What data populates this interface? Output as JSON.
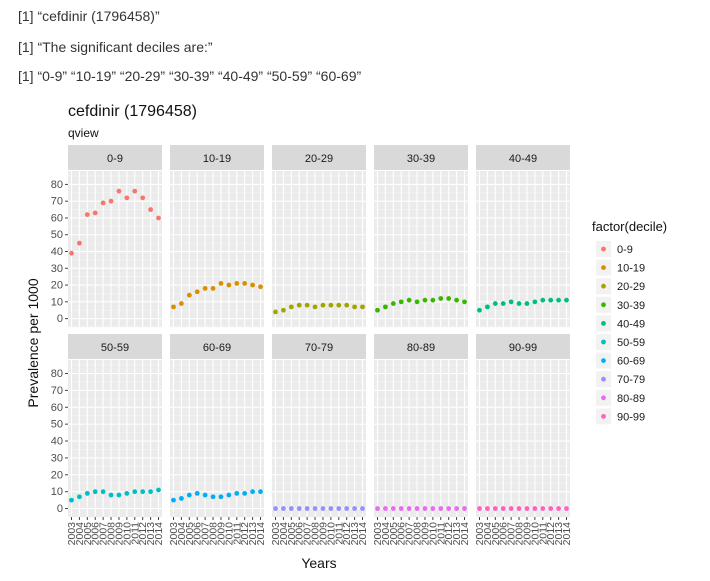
{
  "console": {
    "line1": "[1] “cefdinir (1796458)”",
    "line2": "[1] “The significant deciles are:”",
    "line3": "[1] “0-9” “10-19” “20-29” “30-39” “40-49” “50-59” “60-69”"
  },
  "chart_data": {
    "type": "scatter",
    "title": "cefdinir (1796458)",
    "subtitle": "qview",
    "xlabel": "Years",
    "ylabel": "Prevalence per 1000",
    "x": [
      "2003",
      "2004",
      "2005",
      "2006",
      "2007",
      "2008",
      "2009",
      "2010",
      "2011",
      "2012",
      "2013",
      "2014"
    ],
    "y_ticks": [
      0,
      10,
      20,
      30,
      40,
      50,
      60,
      70,
      80
    ],
    "ylim": [
      -5,
      88
    ],
    "grid": true,
    "legend": {
      "title": "factor(decile)",
      "position": "right"
    },
    "facets": [
      {
        "name": "0-9",
        "color": "#F8766D",
        "values": [
          39,
          45,
          62,
          63,
          69,
          70,
          76,
          72,
          76,
          72,
          65,
          60
        ]
      },
      {
        "name": "10-19",
        "color": "#D89000",
        "values": [
          7,
          9,
          14,
          16,
          18,
          18,
          21,
          20,
          21,
          21,
          20,
          19
        ]
      },
      {
        "name": "20-29",
        "color": "#A3A500",
        "values": [
          4,
          5,
          7,
          8,
          8,
          7,
          8,
          8,
          8,
          8,
          7,
          7
        ]
      },
      {
        "name": "30-39",
        "color": "#39B600",
        "values": [
          5,
          7,
          9,
          10,
          11,
          10,
          11,
          11,
          12,
          12,
          11,
          10
        ]
      },
      {
        "name": "40-49",
        "color": "#00BF7D",
        "values": [
          5,
          7,
          9,
          9,
          10,
          9,
          9,
          10,
          11,
          11,
          11,
          11
        ]
      },
      {
        "name": "50-59",
        "color": "#00BFC4",
        "values": [
          5,
          7,
          9,
          10,
          10,
          8,
          8,
          9,
          10,
          10,
          10,
          11
        ]
      },
      {
        "name": "60-69",
        "color": "#00B0F6",
        "values": [
          5,
          6,
          8,
          9,
          8,
          7,
          7,
          8,
          9,
          9,
          10,
          10
        ]
      },
      {
        "name": "70-79",
        "color": "#9590FF",
        "values": [
          0,
          0,
          0,
          0,
          0,
          0,
          0,
          0,
          0,
          0,
          0,
          0
        ]
      },
      {
        "name": "80-89",
        "color": "#E76BF3",
        "values": [
          0,
          0,
          0,
          0,
          0,
          0,
          0,
          0,
          0,
          0,
          0,
          0
        ]
      },
      {
        "name": "90-99",
        "color": "#FF62BC",
        "values": [
          0,
          0,
          0,
          0,
          0,
          0,
          0,
          0,
          0,
          0,
          0,
          0
        ]
      }
    ]
  }
}
